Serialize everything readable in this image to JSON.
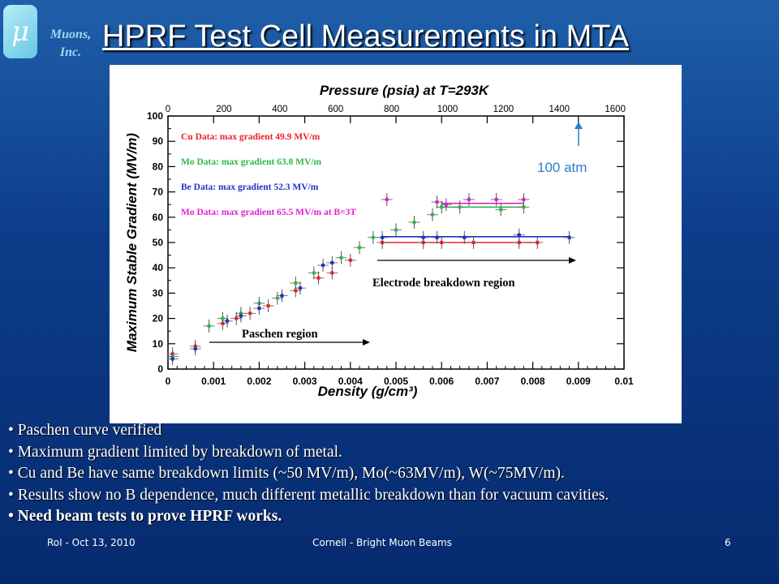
{
  "company": {
    "line1": "Muons,",
    "line2": "Inc.",
    "glyph": "μ"
  },
  "slide_title": "HPRF Test Cell Measurements in MTA",
  "chart_data": {
    "type": "scatter",
    "top_axis_title": "Pressure (psia) at T=293K",
    "top_ticks": [
      "0",
      "200",
      "400",
      "600",
      "800",
      "1000",
      "1200",
      "1400",
      "1600"
    ],
    "xlabel": "Density (g/cm³)",
    "ylabel": "Maximum Stable Gradient (MV/m)",
    "xlim": [
      0,
      0.01
    ],
    "ylim": [
      0,
      100
    ],
    "x_ticks": [
      "0",
      "0.001",
      "0.002",
      "0.003",
      "0.004",
      "0.005",
      "0.006",
      "0.007",
      "0.008",
      "0.009",
      "0.01"
    ],
    "y_ticks": [
      "0",
      "10",
      "20",
      "30",
      "40",
      "50",
      "60",
      "70",
      "80",
      "90",
      "100"
    ],
    "series": [
      {
        "name": "Cu Data: max gradient 49.9 MV/m",
        "color": "#e8242b",
        "points": [
          [
            0.0001,
            6
          ],
          [
            0.0006,
            9
          ],
          [
            0.0012,
            18
          ],
          [
            0.0015,
            20
          ],
          [
            0.0018,
            22
          ],
          [
            0.0022,
            25
          ],
          [
            0.0028,
            31
          ],
          [
            0.0033,
            36
          ],
          [
            0.0036,
            38
          ],
          [
            0.004,
            43
          ],
          [
            0.0047,
            50
          ],
          [
            0.0056,
            50
          ],
          [
            0.006,
            50
          ],
          [
            0.0067,
            50
          ],
          [
            0.0077,
            50
          ],
          [
            0.0081,
            50
          ]
        ],
        "fit": [
          [
            0.0047,
            50
          ],
          [
            0.0081,
            50
          ]
        ]
      },
      {
        "name": "Mo Data: max gradient 63.8 MV/m",
        "color": "#2db84a",
        "points": [
          [
            0.0001,
            5
          ],
          [
            0.0009,
            17
          ],
          [
            0.0012,
            20
          ],
          [
            0.0016,
            22
          ],
          [
            0.002,
            26
          ],
          [
            0.0024,
            28
          ],
          [
            0.0028,
            34
          ],
          [
            0.0032,
            38
          ],
          [
            0.0038,
            44
          ],
          [
            0.0042,
            48
          ],
          [
            0.0045,
            52
          ],
          [
            0.005,
            55
          ],
          [
            0.0054,
            58
          ],
          [
            0.0058,
            61
          ],
          [
            0.006,
            64
          ],
          [
            0.0064,
            64
          ],
          [
            0.0073,
            63
          ],
          [
            0.0078,
            64
          ]
        ],
        "fit": [
          [
            0.006,
            64
          ],
          [
            0.0078,
            64
          ]
        ]
      },
      {
        "name": "Be Data: max gradient 52.3 MV/m",
        "color": "#2032c8",
        "points": [
          [
            0.0001,
            4
          ],
          [
            0.0006,
            8
          ],
          [
            0.0013,
            19
          ],
          [
            0.0016,
            21
          ],
          [
            0.002,
            24
          ],
          [
            0.0025,
            29
          ],
          [
            0.0029,
            32
          ],
          [
            0.0034,
            41
          ],
          [
            0.0036,
            42
          ],
          [
            0.0047,
            52
          ],
          [
            0.0056,
            52
          ],
          [
            0.0059,
            52
          ],
          [
            0.0065,
            52
          ],
          [
            0.0077,
            53
          ],
          [
            0.0088,
            52
          ]
        ],
        "fit": [
          [
            0.0047,
            52.3
          ],
          [
            0.0088,
            52.3
          ]
        ]
      },
      {
        "name": "Mo Data: max gradient 65.5 MV/m at B=3T",
        "color": "#e020d0",
        "points": [
          [
            0.0048,
            67
          ],
          [
            0.0059,
            66
          ],
          [
            0.0061,
            65
          ],
          [
            0.0066,
            67
          ],
          [
            0.0072,
            67
          ],
          [
            0.0078,
            67
          ]
        ],
        "fit": [
          [
            0.006,
            65.5
          ],
          [
            0.0078,
            65.5
          ]
        ]
      }
    ],
    "annotations": {
      "atm_label": "100 atm",
      "electrode": "Electrode breakdown region",
      "paschen": "Paschen region"
    }
  },
  "bullets": [
    "• Paschen curve verified",
    "• Maximum gradient limited by breakdown of metal.",
    "• Cu and Be have same breakdown limits (~50 MV/m), Mo(~63MV/m), W(~75MV/m).",
    "• Results show no B dependence, much different metallic breakdown than for vacuum cavities.",
    "• Need beam tests to prove HPRF works."
  ],
  "footer": {
    "left": "RoI - Oct 13, 2010",
    "center": "Cornell - Bright Muon Beams",
    "right": "6"
  }
}
